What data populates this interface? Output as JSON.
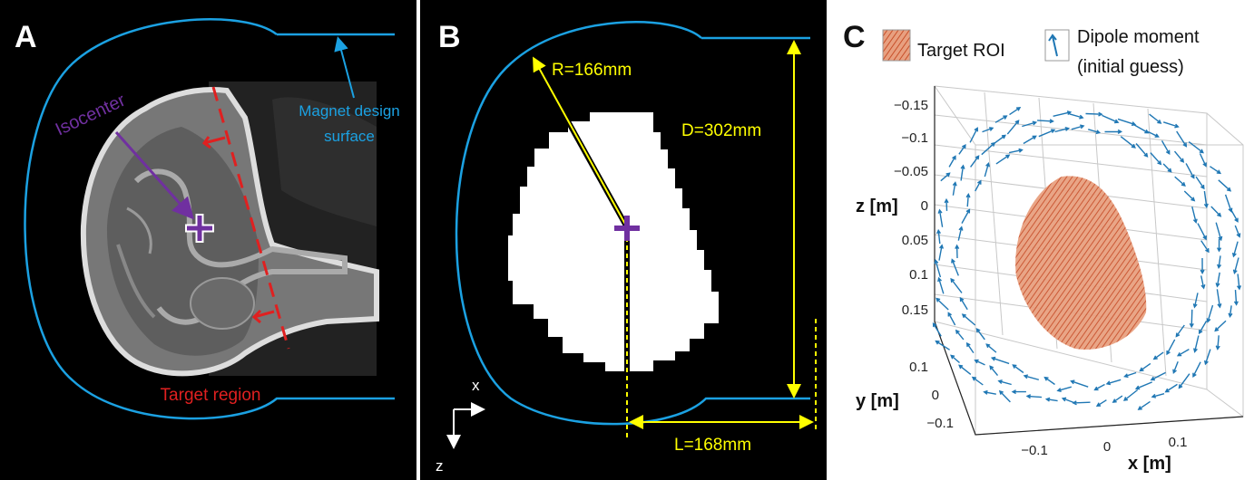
{
  "panels": {
    "a": {
      "letter": "A",
      "isocenter_label": "Isocenter",
      "magnet_label_line1": "Magnet design",
      "magnet_label_line2": "surface",
      "target_label": "Target region"
    },
    "b": {
      "letter": "B",
      "radius_label": "R=166mm",
      "diameter_label": "D=302mm",
      "length_label": "L=168mm",
      "axis_x": "x",
      "axis_z": "z"
    },
    "c": {
      "letter": "C",
      "legend_roi": "Target ROI",
      "legend_dipole_line1": "Dipole moment",
      "legend_dipole_line2": "(initial guess)",
      "zlabel": "z [m]",
      "ylabel": "y [m]",
      "xlabel": "x [m]",
      "zticks": [
        "−0.15",
        "−0.1",
        "−0.05",
        "0",
        "0.05",
        "0.1",
        "0.15"
      ],
      "yticks": [
        "0.1",
        "0",
        "−0.1"
      ],
      "xticks": [
        "−0.1",
        "0",
        "0.1"
      ]
    }
  },
  "colors": {
    "magnet_surface": "#1ba1e2",
    "isocenter": "#7030a0",
    "target": "#e02020",
    "dimension": "#ffff00",
    "roi": "#d4603a",
    "dipole": "#1f77b4"
  }
}
